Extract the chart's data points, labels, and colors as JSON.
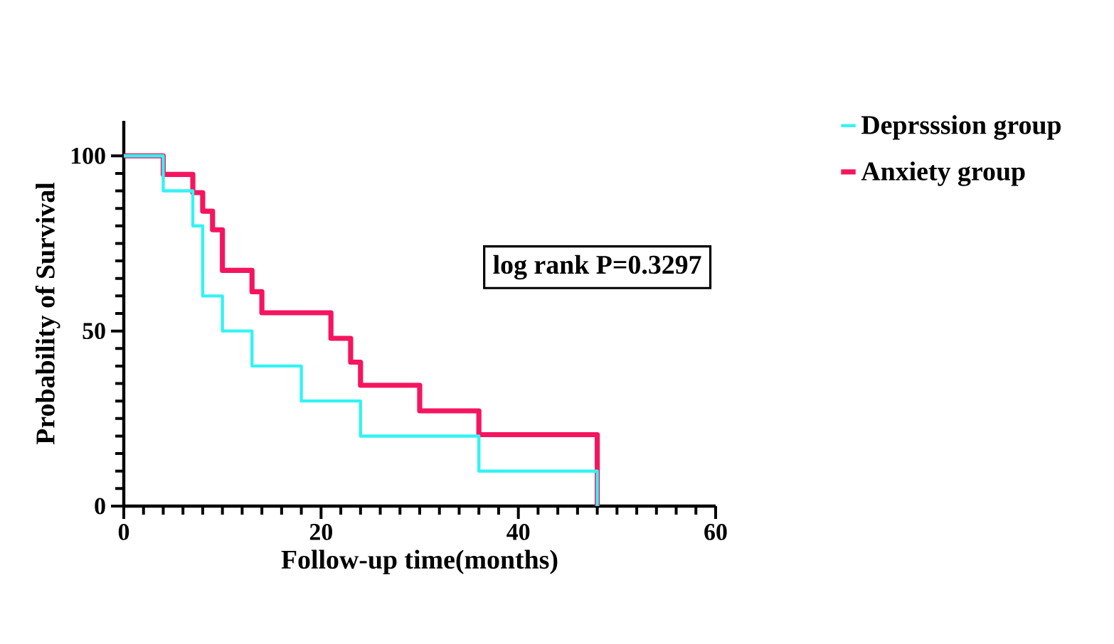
{
  "chart_data": {
    "type": "step",
    "xlabel": "Follow-up time(months)",
    "ylabel": "Probability of Survival",
    "series": [
      {
        "name": "Deprsssion group",
        "color": "#33f3f3",
        "x": [
          0,
          4,
          7,
          8,
          10,
          13,
          18,
          24,
          36,
          48
        ],
        "values": [
          100,
          90,
          80,
          60,
          50,
          40,
          30,
          20,
          10,
          0
        ]
      },
      {
        "name": "Anxiety group",
        "color": "#f5155f",
        "x": [
          0,
          4,
          7,
          8,
          9,
          10,
          13,
          14,
          21,
          23,
          24,
          30,
          36,
          48
        ],
        "values": [
          100,
          94.7,
          89.5,
          84.2,
          78.9,
          67.3,
          61.2,
          55.2,
          47.9,
          41.1,
          34.5,
          27.2,
          20.4,
          0
        ]
      }
    ],
    "xlim": [
      0,
      60
    ],
    "xticks": [
      0,
      20,
      40,
      60
    ],
    "ylim": [
      0,
      110
    ],
    "yticks": [
      0,
      50,
      100
    ],
    "annotations": [
      "log rank P=0.3297"
    ],
    "legend": "top right",
    "grid": false
  }
}
